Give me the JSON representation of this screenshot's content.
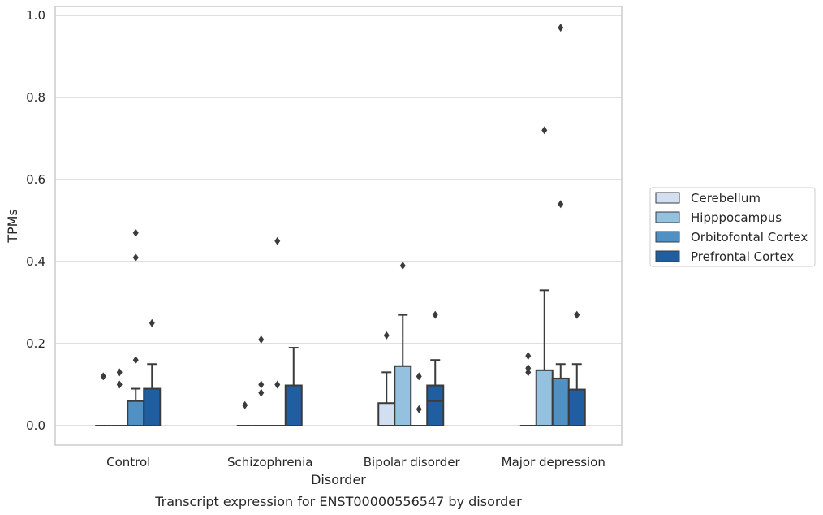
{
  "chart_data": {
    "type": "box",
    "xlabel": "Disorder",
    "ylabel": "TPMs",
    "caption": "Transcript expression for ENST00000556547 by disorder",
    "ylim": [
      -0.05,
      1.02
    ],
    "yticks": [
      "0.0",
      "0.2",
      "0.4",
      "0.6",
      "0.8",
      "1.0"
    ],
    "grid": "horizontal",
    "legend_position": "right",
    "categories": [
      "Control",
      "Schizophrenia",
      "Bipolar disorder",
      "Major depression"
    ],
    "series": [
      {
        "name": "Cerebellum",
        "color": "#d1dff0",
        "boxes": [
          {
            "q1": 0,
            "median": 0,
            "q3": 0,
            "whisker_low": 0,
            "whisker_high": 0,
            "outliers": [
              0.12
            ]
          },
          {
            "q1": 0,
            "median": 0,
            "q3": 0,
            "whisker_low": 0,
            "whisker_high": 0,
            "outliers": [
              0.05
            ]
          },
          {
            "q1": 0,
            "median": 0,
            "q3": 0.055,
            "whisker_low": 0,
            "whisker_high": 0.13,
            "outliers": [
              0.22
            ]
          },
          {
            "q1": 0,
            "median": 0,
            "q3": 0,
            "whisker_low": 0,
            "whisker_high": 0,
            "outliers": [
              0.13,
              0.14,
              0.17
            ]
          }
        ]
      },
      {
        "name": "Hipppocampus",
        "color": "#94c1de",
        "boxes": [
          {
            "q1": 0,
            "median": 0,
            "q3": 0,
            "whisker_low": 0,
            "whisker_high": 0,
            "outliers": [
              0.1,
              0.13
            ]
          },
          {
            "q1": 0,
            "median": 0,
            "q3": 0,
            "whisker_low": 0,
            "whisker_high": 0,
            "outliers": [
              0.08,
              0.1,
              0.21
            ]
          },
          {
            "q1": 0,
            "median": 0,
            "q3": 0.145,
            "whisker_low": 0,
            "whisker_high": 0.27,
            "outliers": [
              0.39
            ]
          },
          {
            "q1": 0,
            "median": 0,
            "q3": 0.135,
            "whisker_low": 0,
            "whisker_high": 0.33,
            "outliers": [
              0.72
            ]
          }
        ]
      },
      {
        "name": "Orbitofontal Cortex",
        "color": "#4f91c4",
        "boxes": [
          {
            "q1": 0,
            "median": 0,
            "q3": 0.06,
            "whisker_low": 0,
            "whisker_high": 0.09,
            "outliers": [
              0.16,
              0.41,
              0.47
            ]
          },
          {
            "q1": 0,
            "median": 0,
            "q3": 0,
            "whisker_low": 0,
            "whisker_high": 0,
            "outliers": [
              0.1,
              0.45
            ]
          },
          {
            "q1": 0,
            "median": 0,
            "q3": 0,
            "whisker_low": 0,
            "whisker_high": 0,
            "outliers": [
              0.04,
              0.12
            ]
          },
          {
            "q1": 0,
            "median": 0,
            "q3": 0.115,
            "whisker_low": 0,
            "whisker_high": 0.15,
            "outliers": [
              0.54,
              0.97
            ]
          }
        ]
      },
      {
        "name": "Prefrontal Cortex",
        "color": "#1f5ea1",
        "boxes": [
          {
            "q1": 0,
            "median": 0,
            "q3": 0.09,
            "whisker_low": 0,
            "whisker_high": 0.15,
            "outliers": [
              0.25
            ]
          },
          {
            "q1": 0,
            "median": 0,
            "q3": 0.098,
            "whisker_low": 0,
            "whisker_high": 0.19,
            "outliers": []
          },
          {
            "q1": 0,
            "median": 0.06,
            "q3": 0.098,
            "whisker_low": 0,
            "whisker_high": 0.16,
            "outliers": [
              0.27
            ]
          },
          {
            "q1": 0,
            "median": 0,
            "q3": 0.088,
            "whisker_low": 0,
            "whisker_high": 0.15,
            "outliers": [
              0.27
            ]
          }
        ]
      }
    ]
  }
}
